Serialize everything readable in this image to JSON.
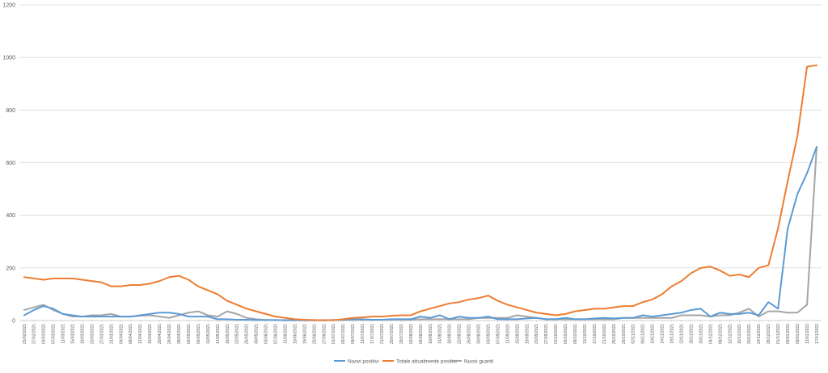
{
  "chart_data": {
    "type": "line",
    "title": "",
    "xlabel": "",
    "ylabel": "",
    "ylim": [
      0,
      1200
    ],
    "yticks": [
      0,
      200,
      400,
      600,
      800,
      1000,
      1200
    ],
    "grid": "horizontal",
    "legend_position": "bottom",
    "x": [
      "23/02/2021",
      "27/02/2021",
      "03/03/2021",
      "07/03/2021",
      "11/03/2021",
      "15/03/2021",
      "19/03/2021",
      "23/03/2021",
      "27/03/2021",
      "31/03/2021",
      "04/04/2021",
      "08/04/2021",
      "12/04/2021",
      "16/04/2021",
      "20/04/2021",
      "24/04/2021",
      "28/04/2021",
      "02/05/2021",
      "06/05/2021",
      "10/05/2021",
      "14/05/2021",
      "18/05/2021",
      "22/05/2021",
      "26/05/2021",
      "30/05/2021",
      "03/06/2021",
      "07/06/2021",
      "11/06/2021",
      "15/06/2021",
      "19/06/2021",
      "23/06/2021",
      "27/06/2021",
      "01/07/2021",
      "05/07/2021",
      "09/07/2021",
      "13/07/2021",
      "17/07/2021",
      "21/07/2021",
      "25/07/2021",
      "29/07/2021",
      "02/08/2021",
      "06/08/2021",
      "10/08/2021",
      "14/08/2021",
      "18/08/2021",
      "22/08/2021",
      "26/08/2021",
      "30/08/2021",
      "03/09/2021",
      "07/09/2021",
      "11/09/2021",
      "15/09/2021",
      "19/09/2021",
      "23/09/2021",
      "27/09/2021",
      "01/10/2021",
      "05/10/2021",
      "09/10/2021",
      "13/10/2021",
      "17/10/2021",
      "21/10/2021",
      "25/10/2021",
      "29/10/2021",
      "02/11/2021",
      "06/11/2021",
      "10/11/2021",
      "14/11/2021",
      "18/11/2021",
      "22/11/2021",
      "26/11/2021",
      "30/11/2021",
      "04/12/2021",
      "08/12/2021",
      "12/12/2021",
      "16/12/2021",
      "20/12/2021",
      "24/12/2021",
      "28/12/2021",
      "01/01/2022",
      "05/01/2022",
      "09/01/2022",
      "13/01/2022",
      "17/01/2022"
    ],
    "series": [
      {
        "name": "Nuovi positivi",
        "color": "#5b9bd5",
        "values": [
          20,
          40,
          55,
          45,
          25,
          20,
          15,
          15,
          15,
          15,
          15,
          15,
          20,
          25,
          30,
          30,
          25,
          15,
          15,
          15,
          5,
          5,
          3,
          3,
          2,
          2,
          2,
          1,
          1,
          1,
          1,
          1,
          2,
          3,
          5,
          5,
          3,
          3,
          5,
          5,
          5,
          15,
          10,
          20,
          5,
          15,
          10,
          10,
          15,
          5,
          5,
          5,
          8,
          10,
          5,
          5,
          10,
          5,
          5,
          8,
          10,
          8,
          10,
          10,
          20,
          15,
          20,
          25,
          30,
          40,
          45,
          15,
          30,
          25,
          25,
          30,
          20,
          70,
          45,
          350,
          480,
          560,
          660
        ]
      },
      {
        "name": "Totale attualmente positivi",
        "color": "#ed7d31",
        "values": [
          165,
          160,
          155,
          160,
          160,
          160,
          155,
          150,
          145,
          130,
          130,
          135,
          135,
          140,
          150,
          165,
          170,
          155,
          130,
          115,
          100,
          75,
          60,
          45,
          35,
          25,
          15,
          10,
          5,
          3,
          2,
          1,
          2,
          5,
          10,
          12,
          15,
          15,
          18,
          20,
          20,
          35,
          45,
          55,
          65,
          70,
          80,
          85,
          95,
          75,
          60,
          50,
          40,
          30,
          25,
          20,
          25,
          35,
          40,
          45,
          45,
          50,
          55,
          55,
          70,
          80,
          100,
          130,
          150,
          180,
          200,
          205,
          190,
          170,
          175,
          165,
          200,
          210,
          350,
          530,
          700,
          965,
          970
        ]
      },
      {
        "name": "Nuovi guariti",
        "color": "#a5a5a5",
        "values": [
          40,
          50,
          60,
          40,
          25,
          15,
          15,
          20,
          20,
          25,
          15,
          15,
          18,
          20,
          15,
          10,
          20,
          30,
          35,
          20,
          15,
          35,
          25,
          10,
          5,
          2,
          2,
          1,
          1,
          1,
          1,
          1,
          1,
          2,
          2,
          3,
          2,
          3,
          3,
          3,
          3,
          5,
          5,
          5,
          5,
          5,
          5,
          10,
          10,
          10,
          10,
          20,
          15,
          10,
          5,
          5,
          5,
          5,
          5,
          5,
          5,
          5,
          10,
          10,
          10,
          10,
          10,
          10,
          20,
          20,
          20,
          15,
          20,
          20,
          30,
          45,
          15,
          35,
          35,
          30,
          30,
          60,
          660
        ]
      }
    ]
  }
}
